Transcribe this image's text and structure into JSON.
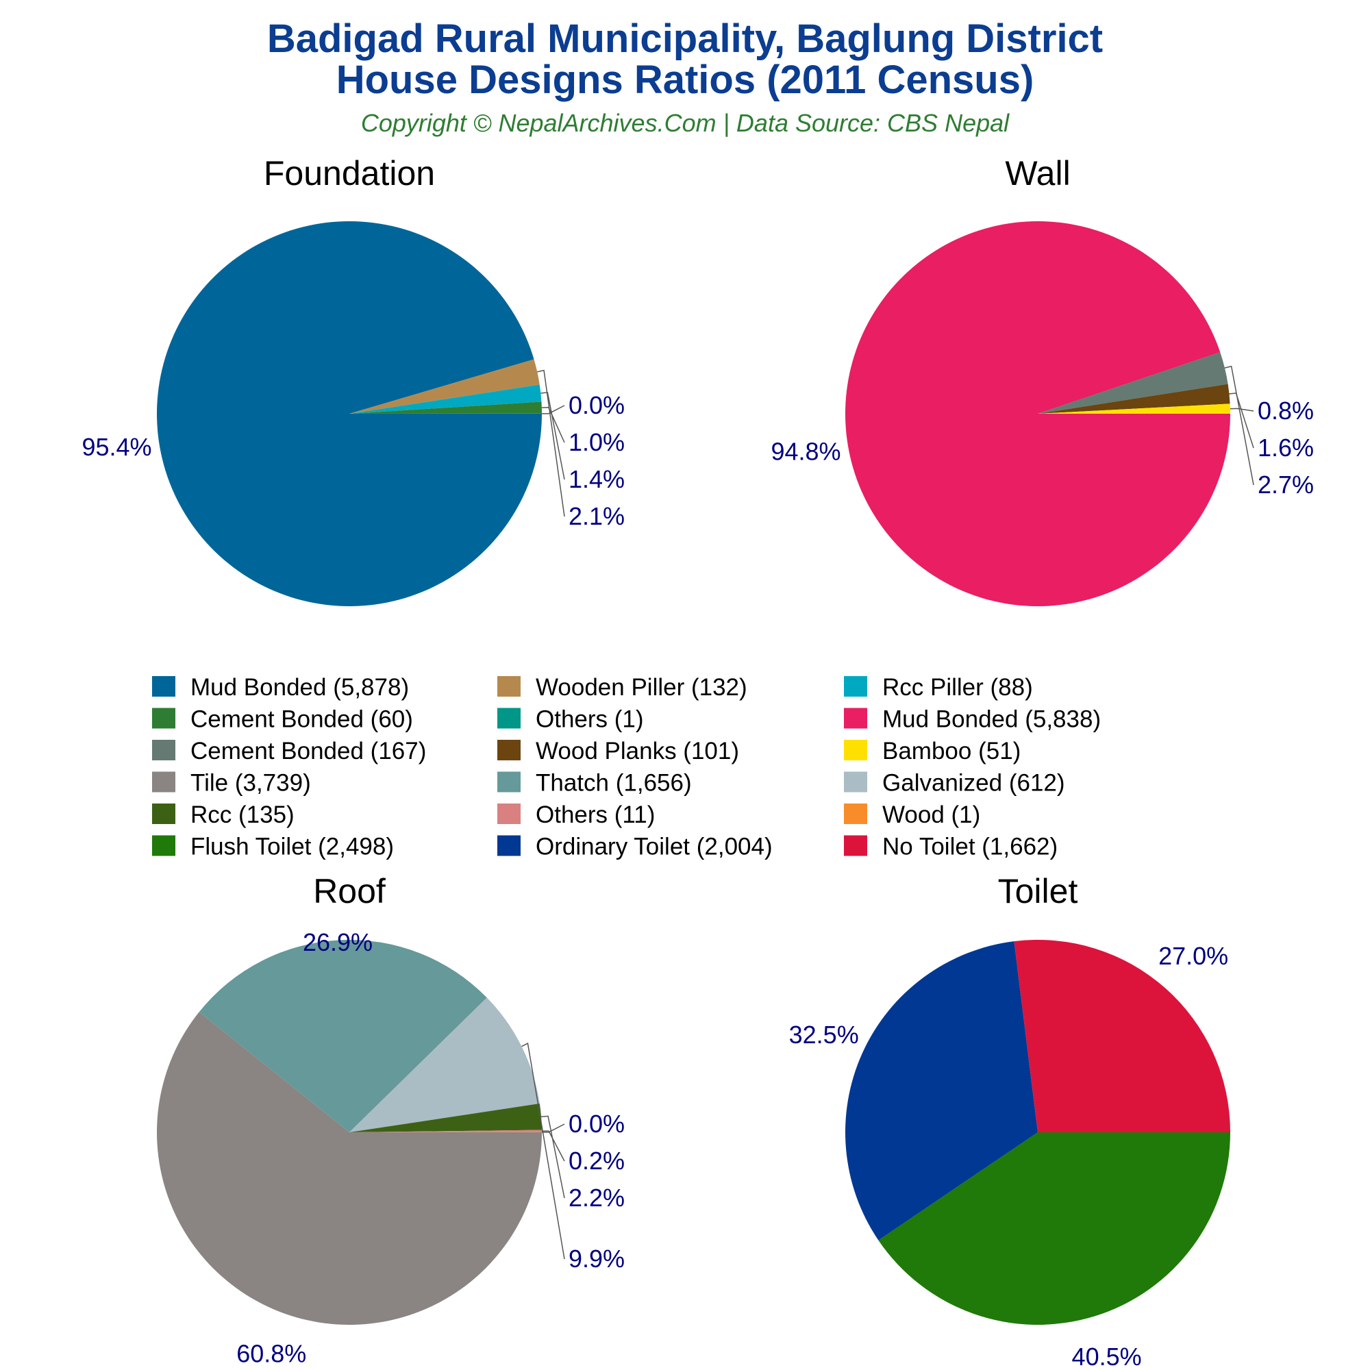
{
  "header": {
    "title_line1": "Badigad Rural Municipality, Baglung District",
    "title_line2": "House Designs Ratios (2011 Census)",
    "subtitle": "Copyright © NepalArchives.Com | Data Source: CBS Nepal"
  },
  "chart_data": [
    {
      "type": "pie",
      "title": "Foundation",
      "slices": [
        {
          "label": "Mud Bonded (5,878)",
          "value": 5878,
          "percent_label": "95.4%",
          "color": "#006699"
        },
        {
          "label": "Wooden Piller (132)",
          "value": 132,
          "percent_label": "2.1%",
          "color": "#b5894e"
        },
        {
          "label": "Rcc Piller (88)",
          "value": 88,
          "percent_label": "1.4%",
          "color": "#00a9c1"
        },
        {
          "label": "Cement Bonded (60)",
          "value": 60,
          "percent_label": "1.0%",
          "color": "#2e7d32"
        },
        {
          "label": "Others (1)",
          "value": 1,
          "percent_label": "0.0%",
          "color": "#009688"
        }
      ]
    },
    {
      "type": "pie",
      "title": "Wall",
      "slices": [
        {
          "label": "Mud Bonded (5,838)",
          "value": 5838,
          "percent_label": "94.8%",
          "color": "#e91e63"
        },
        {
          "label": "Cement Bonded (167)",
          "value": 167,
          "percent_label": "2.7%",
          "color": "#657a72"
        },
        {
          "label": "Wood Planks (101)",
          "value": 101,
          "percent_label": "1.6%",
          "color": "#6b4410"
        },
        {
          "label": "Bamboo (51)",
          "value": 51,
          "percent_label": "0.8%",
          "color": "#ffe000"
        }
      ]
    },
    {
      "type": "pie",
      "title": "Roof",
      "slices": [
        {
          "label": "Tile (3,739)",
          "value": 3739,
          "percent_label": "60.8%",
          "color": "#8a8582"
        },
        {
          "label": "Thatch (1,656)",
          "value": 1656,
          "percent_label": "26.9%",
          "color": "#669999"
        },
        {
          "label": "Galvanized (612)",
          "value": 612,
          "percent_label": "9.9%",
          "color": "#aabcc4"
        },
        {
          "label": "Rcc (135)",
          "value": 135,
          "percent_label": "2.2%",
          "color": "#3d6114"
        },
        {
          "label": "Others (11)",
          "value": 11,
          "percent_label": "0.2%",
          "color": "#d98080"
        },
        {
          "label": "Wood (1)",
          "value": 1,
          "percent_label": "0.0%",
          "color": "#f88c2a"
        }
      ]
    },
    {
      "type": "pie",
      "title": "Toilet",
      "slices": [
        {
          "label": "Flush Toilet (2,498)",
          "value": 2498,
          "percent_label": "40.5%",
          "color": "#1f7a09"
        },
        {
          "label": "Ordinary Toilet (2,004)",
          "value": 2004,
          "percent_label": "32.5%",
          "color": "#003893"
        },
        {
          "label": "No Toilet (1,662)",
          "value": 1662,
          "percent_label": "27.0%",
          "color": "#dc143c"
        }
      ]
    }
  ],
  "legend": {
    "items": [
      {
        "label": "Mud Bonded (5,878)",
        "color": "#006699"
      },
      {
        "label": "Wooden Piller (132)",
        "color": "#b5894e"
      },
      {
        "label": "Rcc Piller (88)",
        "color": "#00a9c1"
      },
      {
        "label": "Cement Bonded (60)",
        "color": "#2e7d32"
      },
      {
        "label": "Others (1)",
        "color": "#009688"
      },
      {
        "label": "Mud Bonded (5,838)",
        "color": "#e91e63"
      },
      {
        "label": "Cement Bonded (167)",
        "color": "#657a72"
      },
      {
        "label": "Wood Planks (101)",
        "color": "#6b4410"
      },
      {
        "label": "Bamboo (51)",
        "color": "#ffe000"
      },
      {
        "label": "Tile (3,739)",
        "color": "#8a8582"
      },
      {
        "label": "Thatch (1,656)",
        "color": "#669999"
      },
      {
        "label": "Galvanized (612)",
        "color": "#aabcc4"
      },
      {
        "label": "Rcc (135)",
        "color": "#3d6114"
      },
      {
        "label": "Others (11)",
        "color": "#d98080"
      },
      {
        "label": "Wood (1)",
        "color": "#f88c2a"
      },
      {
        "label": "Flush Toilet (2,498)",
        "color": "#1f7a09"
      },
      {
        "label": "Ordinary Toilet (2,004)",
        "color": "#003893"
      },
      {
        "label": "No Toilet (1,662)",
        "color": "#dc143c"
      }
    ]
  }
}
